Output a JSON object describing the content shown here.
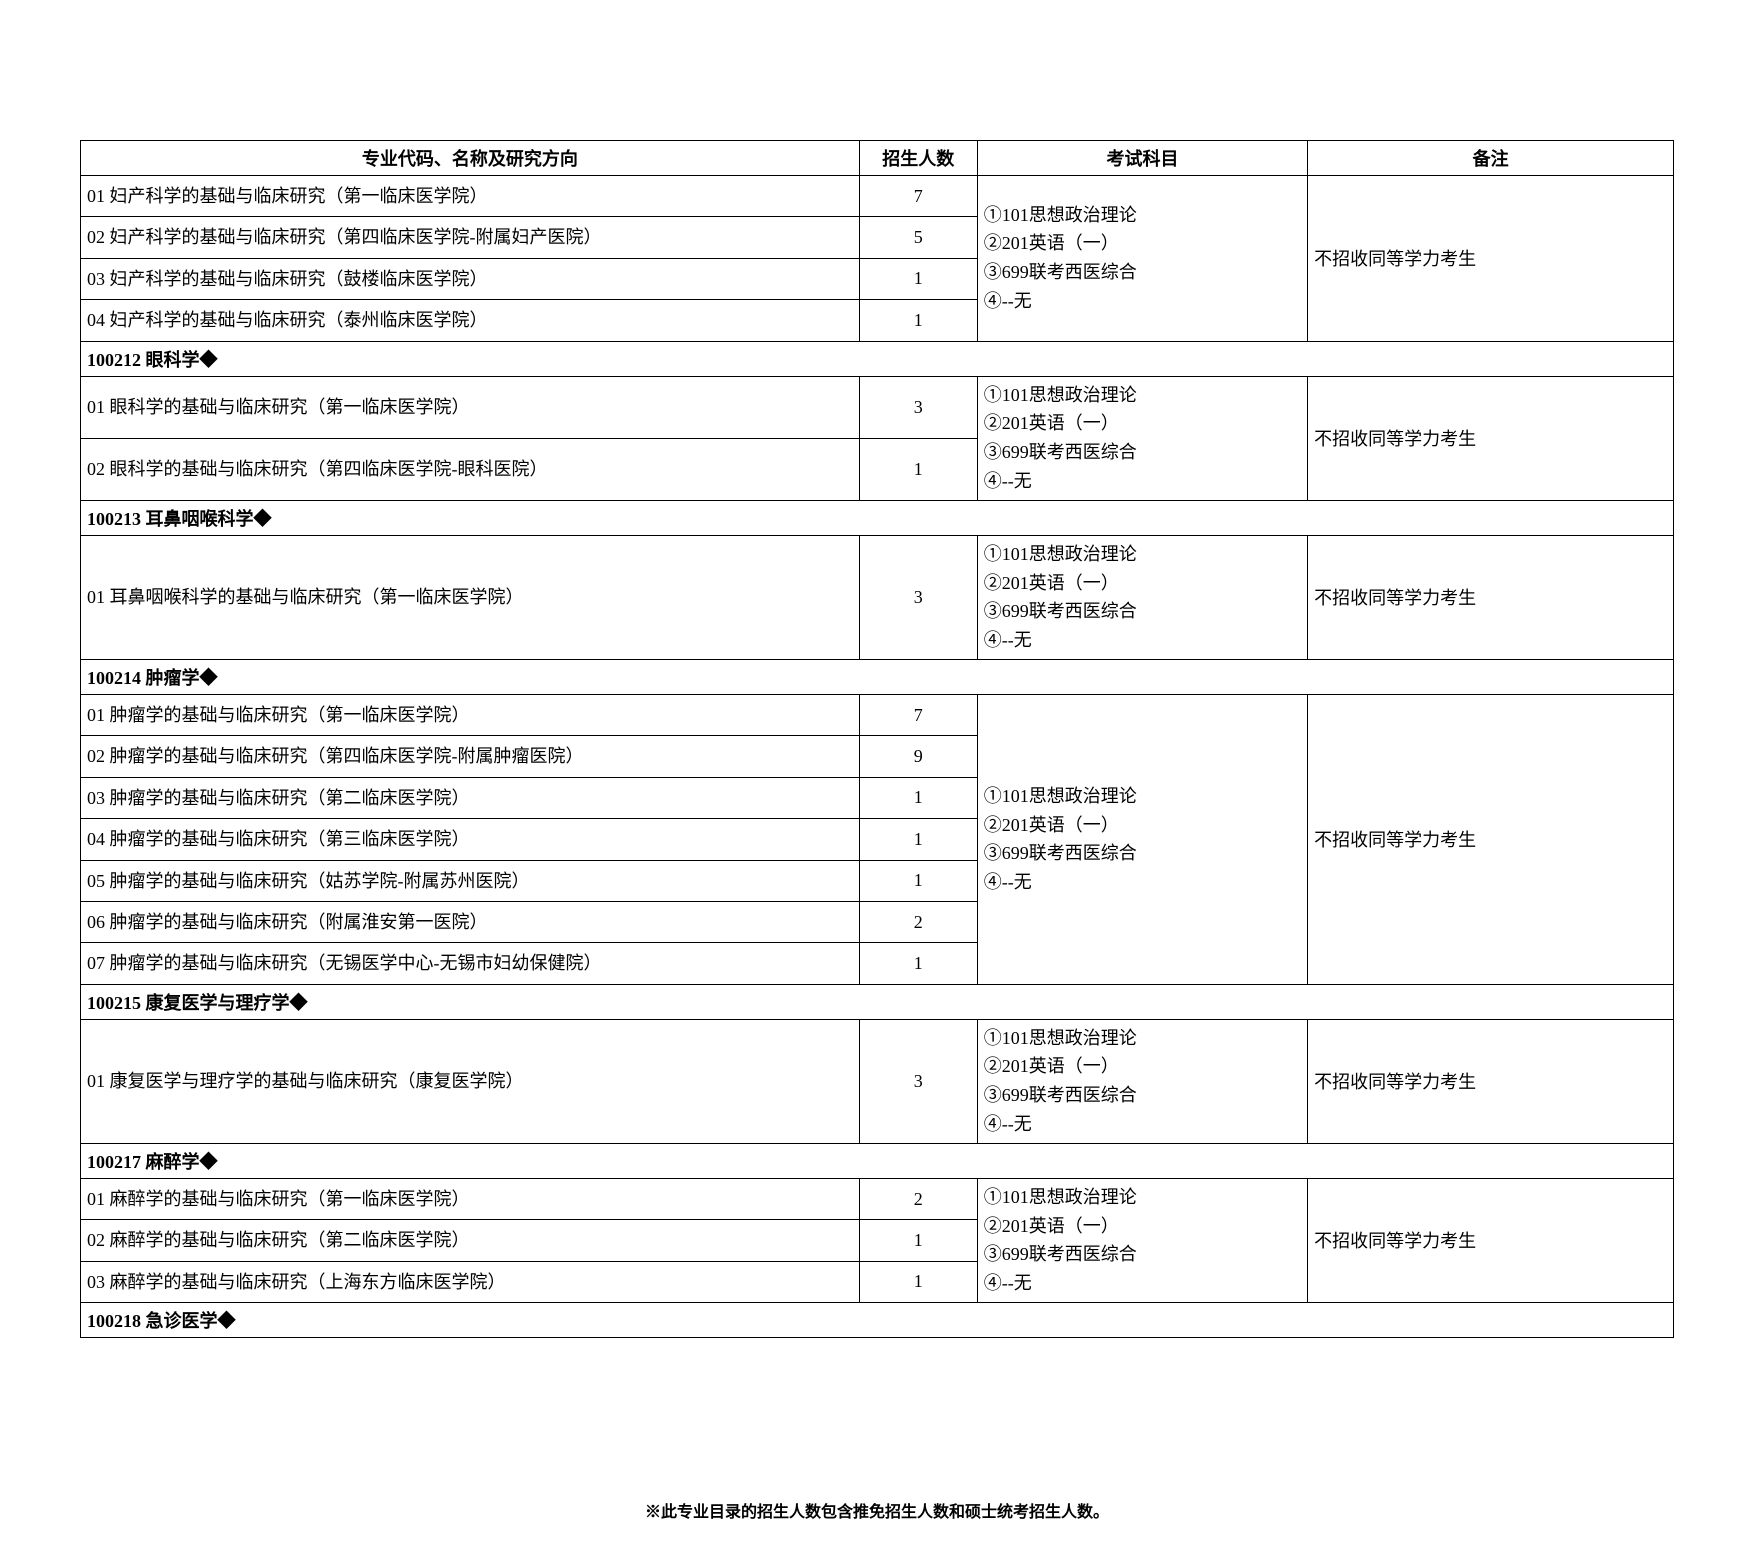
{
  "headers": {
    "col1": "专业代码、名称及研究方向",
    "col2": "招生人数",
    "col3": "考试科目",
    "col4": "备注"
  },
  "sections": [
    {
      "type": "group",
      "directions": [
        {
          "label": "01 妇产科学的基础与临床研究（第一临床医学院）",
          "quota": "7"
        },
        {
          "label": "02 妇产科学的基础与临床研究（第四临床医学院-附属妇产医院）",
          "quota": "5"
        },
        {
          "label": "03 妇产科学的基础与临床研究（鼓楼临床医学院）",
          "quota": "1"
        },
        {
          "label": "04 妇产科学的基础与临床研究（泰州临床医学院）",
          "quota": "1"
        }
      ],
      "subjects": [
        "①101思想政治理论",
        "②201英语（一）",
        "③699联考西医综合",
        "④--无"
      ],
      "note": "不招收同等学力考生"
    },
    {
      "type": "header",
      "title": "100212 眼科学◆"
    },
    {
      "type": "group",
      "directions": [
        {
          "label": "01 眼科学的基础与临床研究（第一临床医学院）",
          "quota": "3"
        },
        {
          "label": "02 眼科学的基础与临床研究（第四临床医学院-眼科医院）",
          "quota": "1"
        }
      ],
      "subjects": [
        "①101思想政治理论",
        "②201英语（一）",
        "③699联考西医综合",
        "④--无"
      ],
      "note": "不招收同等学力考生"
    },
    {
      "type": "header",
      "title": "100213 耳鼻咽喉科学◆"
    },
    {
      "type": "group",
      "directions": [
        {
          "label": "01 耳鼻咽喉科学的基础与临床研究（第一临床医学院）",
          "quota": "3"
        }
      ],
      "subjects": [
        "①101思想政治理论",
        "②201英语（一）",
        "③699联考西医综合",
        "④--无"
      ],
      "note": "不招收同等学力考生"
    },
    {
      "type": "header",
      "title": "100214 肿瘤学◆"
    },
    {
      "type": "group",
      "directions": [
        {
          "label": "01 肿瘤学的基础与临床研究（第一临床医学院）",
          "quota": "7"
        },
        {
          "label": "02 肿瘤学的基础与临床研究（第四临床医学院-附属肿瘤医院）",
          "quota": "9"
        },
        {
          "label": "03 肿瘤学的基础与临床研究（第二临床医学院）",
          "quota": "1"
        },
        {
          "label": "04 肿瘤学的基础与临床研究（第三临床医学院）",
          "quota": "1"
        },
        {
          "label": "05 肿瘤学的基础与临床研究（姑苏学院-附属苏州医院）",
          "quota": "1"
        },
        {
          "label": "06 肿瘤学的基础与临床研究（附属淮安第一医院）",
          "quota": "2"
        },
        {
          "label": "07 肿瘤学的基础与临床研究（无锡医学中心-无锡市妇幼保健院）",
          "quota": "1"
        }
      ],
      "subjects": [
        "①101思想政治理论",
        "②201英语（一）",
        "③699联考西医综合",
        "④--无"
      ],
      "note": "不招收同等学力考生"
    },
    {
      "type": "header",
      "title": "100215 康复医学与理疗学◆"
    },
    {
      "type": "group",
      "directions": [
        {
          "label": "01 康复医学与理疗学的基础与临床研究（康复医学院）",
          "quota": "3"
        }
      ],
      "subjects": [
        "①101思想政治理论",
        "②201英语（一）",
        "③699联考西医综合",
        "④--无"
      ],
      "note": "不招收同等学力考生"
    },
    {
      "type": "header",
      "title": "100217 麻醉学◆"
    },
    {
      "type": "group",
      "directions": [
        {
          "label": "01 麻醉学的基础与临床研究（第一临床医学院）",
          "quota": "2"
        },
        {
          "label": "02 麻醉学的基础与临床研究（第二临床医学院）",
          "quota": "1"
        },
        {
          "label": "03 麻醉学的基础与临床研究（上海东方临床医学院）",
          "quota": "1"
        }
      ],
      "subjects": [
        "①101思想政治理论",
        "②201英语（一）",
        "③699联考西医综合",
        "④--无"
      ],
      "note": "不招收同等学力考生"
    },
    {
      "type": "header",
      "title": "100218 急诊医学◆"
    }
  ],
  "footnote": "※此专业目录的招生人数包含推免招生人数和硕士统考招生人数。"
}
